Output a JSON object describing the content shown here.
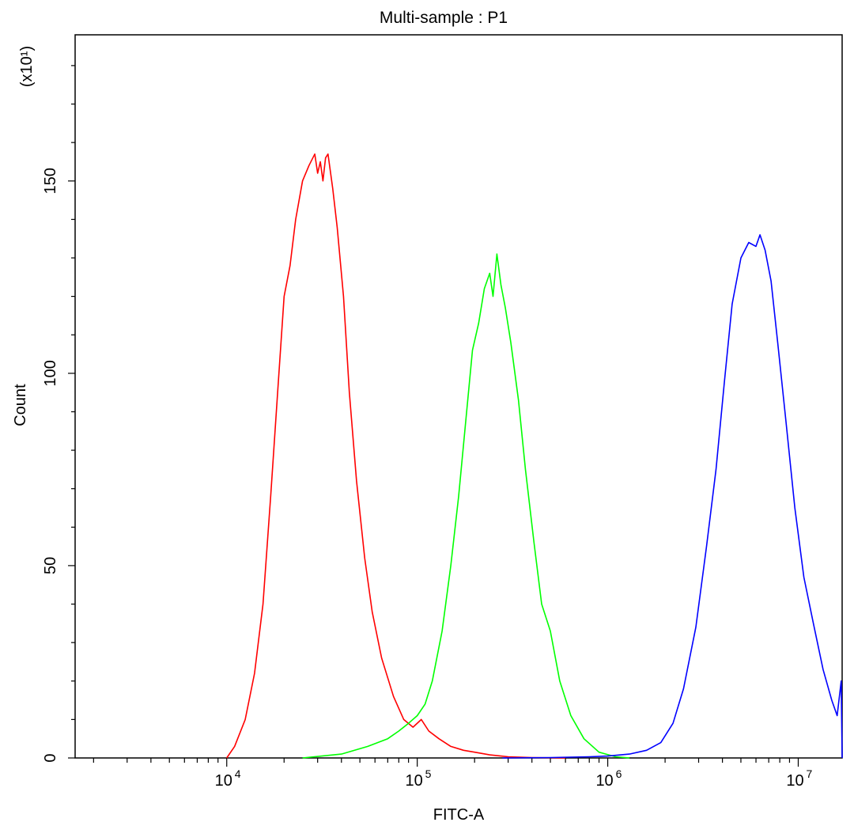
{
  "chart_data": {
    "type": "line",
    "title": "Multi-sample : P1",
    "xlabel": "FITC-A",
    "ylabel": "Count",
    "y_multiplier": "(x10¹)",
    "x_scale": "log",
    "xlim": [
      1600,
      17000000
    ],
    "ylim": [
      0,
      188
    ],
    "x_ticks": [
      {
        "value": 10000,
        "base": "10",
        "exp": "4"
      },
      {
        "value": 100000,
        "base": "10",
        "exp": "5"
      },
      {
        "value": 1000000,
        "base": "10",
        "exp": "6"
      },
      {
        "value": 10000000,
        "base": "10",
        "exp": "7"
      }
    ],
    "y_ticks": [
      {
        "value": 0,
        "label": "0"
      },
      {
        "value": 50,
        "label": "50"
      },
      {
        "value": 100,
        "label": "100"
      },
      {
        "value": 150,
        "label": "150"
      }
    ],
    "grid": false,
    "legend": "none",
    "series": [
      {
        "color": "#ff0000",
        "points": [
          [
            10000,
            0
          ],
          [
            11000,
            3
          ],
          [
            12500,
            10
          ],
          [
            14000,
            22
          ],
          [
            15500,
            40
          ],
          [
            17000,
            68
          ],
          [
            18500,
            95
          ],
          [
            20000,
            120
          ],
          [
            21500,
            128
          ],
          [
            23000,
            140
          ],
          [
            25000,
            150
          ],
          [
            27000,
            154
          ],
          [
            29000,
            157
          ],
          [
            30000,
            152
          ],
          [
            31000,
            155
          ],
          [
            32000,
            150
          ],
          [
            33000,
            156
          ],
          [
            34000,
            157
          ],
          [
            36000,
            148
          ],
          [
            38000,
            138
          ],
          [
            41000,
            120
          ],
          [
            44000,
            95
          ],
          [
            48000,
            72
          ],
          [
            53000,
            52
          ],
          [
            58000,
            38
          ],
          [
            65000,
            26
          ],
          [
            75000,
            16
          ],
          [
            85000,
            10
          ],
          [
            95000,
            8
          ],
          [
            105000,
            10
          ],
          [
            115000,
            7
          ],
          [
            130000,
            5
          ],
          [
            150000,
            3
          ],
          [
            175000,
            2
          ],
          [
            200000,
            1.5
          ],
          [
            240000,
            0.8
          ],
          [
            300000,
            0.3
          ],
          [
            400000,
            0.1
          ],
          [
            600000,
            0
          ]
        ]
      },
      {
        "color": "#00ff00",
        "points": [
          [
            25000,
            0
          ],
          [
            40000,
            1
          ],
          [
            55000,
            3
          ],
          [
            70000,
            5
          ],
          [
            80000,
            7
          ],
          [
            90000,
            9
          ],
          [
            100000,
            11
          ],
          [
            110000,
            14
          ],
          [
            120000,
            20
          ],
          [
            135000,
            33
          ],
          [
            150000,
            50
          ],
          [
            165000,
            68
          ],
          [
            180000,
            88
          ],
          [
            195000,
            106
          ],
          [
            210000,
            113
          ],
          [
            225000,
            122
          ],
          [
            240000,
            126
          ],
          [
            250000,
            120
          ],
          [
            262000,
            131
          ],
          [
            275000,
            123
          ],
          [
            290000,
            117
          ],
          [
            310000,
            108
          ],
          [
            340000,
            93
          ],
          [
            370000,
            75
          ],
          [
            410000,
            56
          ],
          [
            450000,
            40
          ],
          [
            500000,
            33
          ],
          [
            560000,
            20
          ],
          [
            640000,
            11
          ],
          [
            750000,
            5
          ],
          [
            900000,
            1.5
          ],
          [
            1100000,
            0.3
          ],
          [
            1300000,
            0
          ]
        ]
      },
      {
        "color": "#0000ff",
        "points": [
          [
            280000,
            0
          ],
          [
            500000,
            0.1
          ],
          [
            800000,
            0.3
          ],
          [
            1000000,
            0.5
          ],
          [
            1300000,
            1
          ],
          [
            1600000,
            2
          ],
          [
            1900000,
            4
          ],
          [
            2200000,
            9
          ],
          [
            2500000,
            18
          ],
          [
            2900000,
            34
          ],
          [
            3300000,
            55
          ],
          [
            3700000,
            75
          ],
          [
            4100000,
            98
          ],
          [
            4500000,
            118
          ],
          [
            5000000,
            130
          ],
          [
            5500000,
            134
          ],
          [
            6000000,
            133
          ],
          [
            6300000,
            136
          ],
          [
            6700000,
            132
          ],
          [
            7200000,
            124
          ],
          [
            7800000,
            108
          ],
          [
            8600000,
            88
          ],
          [
            9600000,
            65
          ],
          [
            10700000,
            47
          ],
          [
            12000000,
            35
          ],
          [
            13500000,
            23
          ],
          [
            15000000,
            15
          ],
          [
            16000000,
            11
          ],
          [
            16800000,
            20
          ],
          [
            17000000,
            0
          ]
        ]
      }
    ]
  }
}
